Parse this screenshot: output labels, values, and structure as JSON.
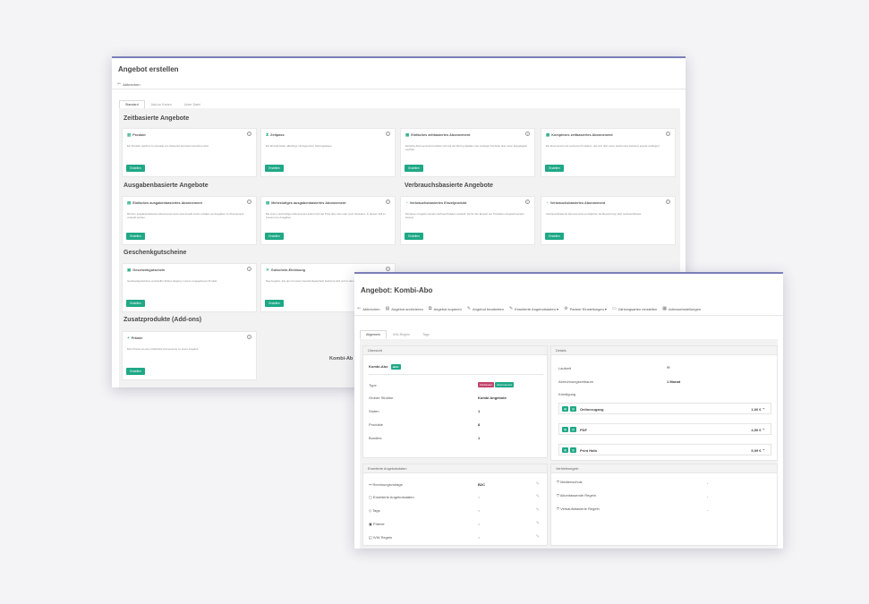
{
  "win1": {
    "title": "Angebot erstellen",
    "toolbar": {
      "back": "Abbrechen"
    },
    "tabs": [
      "Standard",
      "Add-on Karten",
      "Unter Datei"
    ],
    "sections": {
      "zeit": "Zeitbasierte Angebote",
      "ausgaben": "Ausgabenbasierte Angebote",
      "verbrauch": "Verbrauchsbasierte Angebote",
      "geschenk": "Geschenkgutscheine",
      "zusatz": "Zusatzprodukte (Add-ons)"
    },
    "cards": [
      {
        "title": "Produkt",
        "desc": "Ein Produkt, welches zu einmalig von Zeitpunkt des kaufs berechnet wird.",
        "button": "Erstellen"
      },
      {
        "title": "Zeitpass",
        "desc": "Ein Einzelprodukt, allerdings mit begrenzter Nutzungsdauer.",
        "button": "Erstellen"
      },
      {
        "title": "Einfaches zeitbasiertes Abonnement",
        "desc": "Einfache Abonnements bezahlen sich auf den Bezug digitaler oder analoger Produkte über einen festgelegten Laufzeit.",
        "button": "Erstellen"
      },
      {
        "title": "Komplexes zeitbasiertes Abonnement",
        "desc": "Ein Abonnement mit mehreren Produkten, das sich über einen bestimmten Zeitraum jeweils verlängert.",
        "button": "Erstellen"
      },
      {
        "title": "Einfaches ausgabenbasiertes Abonnement",
        "desc": "Mit dem ausgabenbasierten Abonnement kann eine Ansahl merks erhalten ein Ausgaben im Abonnement verkauft werden.",
        "button": "Erstellen"
      },
      {
        "title": "Mehrstufiges ausgabenbasiertes Abonnement",
        "desc": "Bei einem mehrstufigen Abonnement ändert sich der Preis über eine oder mehr Zeitstufen. In diesem Fall im Kontext von Ausgaben.",
        "button": "Erstellen"
      },
      {
        "title": "Verbrauchsbasiertes Einzelprodukt",
        "desc": "Mit diesem Angebot werden Verbrauchsdaten verkauft, die für den Einsatz von Produkten eingeteilt werden können.",
        "button": "Erstellen"
      },
      {
        "title": "Verbrauchsbasiertes Abonnement",
        "desc": "Verbrauchsbasierte Abonnements ermöglichen die Berechnung nach Gebrauchsbasis.",
        "button": "Erstellen"
      },
      {
        "title": "Geschenkgutschein",
        "desc": "Geschenkgutscheine verschaffen Dritten Zugang z einem vorgegebenen Produkt.",
        "button": "Erstellen"
      },
      {
        "title": "Gutschein-Einlösung",
        "desc": "Das Angebot, das der mit einem Geschenkgutschein bestimmt wird und zu dem erhält.",
        "button": "Erstellen"
      },
      {
        "title": "Prämie",
        "desc": "Eine Prämie ist eine zusätzliche Komponente zu einem Angebot.",
        "button": "Erstellen"
      }
    ],
    "partial_label": "Kombi-Ab"
  },
  "win2": {
    "title": "Angebot: Kombi-Abo",
    "toolbar": [
      {
        "icon": "back-icon",
        "glyph": "⇐",
        "label": "Abbrechen"
      },
      {
        "icon": "archive-icon",
        "glyph": "▤",
        "label": "Angebot archivieren"
      },
      {
        "icon": "copy-icon",
        "glyph": "⧉",
        "label": "Angebot kopieren"
      },
      {
        "icon": "edit-icon",
        "glyph": "✎",
        "label": "Angebot bearbeiten"
      },
      {
        "icon": "edit-icon",
        "glyph": "✎",
        "label": "Erweiterte Angebotsdaten ▾"
      },
      {
        "icon": "settings-icon",
        "glyph": "⚙",
        "label": "Partner Einstellungen ▾"
      },
      {
        "icon": "payment-icon",
        "glyph": "▭",
        "label": "Zahlungsarten einstellen"
      },
      {
        "icon": "address-icon",
        "glyph": "▦",
        "label": "Adresseinstellungen"
      }
    ],
    "tabs": [
      "Allgemein",
      "IVW-Regeln",
      "Tags"
    ],
    "overview": {
      "header": "Übersicht",
      "name": "Kombi-Abo",
      "name_badge": "aktiv",
      "rows": [
        {
          "label": "Type",
          "value": ""
        },
        {
          "label": "Ordner Struktur",
          "value": "Kombi Angebote"
        },
        {
          "label": "Stufen",
          "value": "1"
        },
        {
          "label": "Produkte",
          "value": "8"
        },
        {
          "label": "Bundles",
          "value": "1"
        }
      ],
      "type_badges": [
        {
          "text": "Zeitbasiert",
          "color": "#c2436b"
        },
        {
          "text": "Abonnement",
          "color": "#1fa886"
        }
      ]
    },
    "details": {
      "header": "Details",
      "rows": [
        {
          "label": "Laufzeit",
          "value": "∞"
        },
        {
          "label": "Abrechnungszeitraum",
          "value": "1 Monat"
        }
      ],
      "kuendigung": "Kündigung",
      "prices": [
        {
          "label": "Onlinezugang",
          "value": "1,00 € ⌃"
        },
        {
          "label": "PDF",
          "value": "4,50 € ⌃"
        },
        {
          "label": "Print Halb",
          "value": "5,99 € ⌃"
        }
      ]
    },
    "extended": {
      "header": "Erweiterte Angebotsdaten",
      "rows": [
        {
          "icon": "invoice-icon",
          "glyph": "⚯",
          "label": "Rechnungsvorlage",
          "value": "B2C"
        },
        {
          "icon": "data-icon",
          "glyph": "▢",
          "label": "Erweiterte Angebotsdaten",
          "value": "×"
        },
        {
          "icon": "tag-icon",
          "glyph": "◇",
          "label": "Tags",
          "value": "×"
        },
        {
          "icon": "gift-icon",
          "glyph": "▣",
          "label": "Prämie",
          "value": "×"
        },
        {
          "icon": "ivw-icon",
          "glyph": "◱",
          "label": "IVW Regeln",
          "value": "×"
        }
      ]
    },
    "sales_rules": {
      "header": "Vertriebsregeln",
      "rows": [
        {
          "icon": "shield-icon",
          "glyph": "⛉",
          "label": "Medienschutz",
          "value": "-"
        },
        {
          "icon": "rules-icon",
          "glyph": "⛉",
          "label": "Allumfassende Regeln",
          "value": "-"
        },
        {
          "icon": "rules-icon",
          "glyph": "⛉",
          "label": "Verkaufsbasierte Regeln",
          "value": "-"
        }
      ]
    }
  }
}
